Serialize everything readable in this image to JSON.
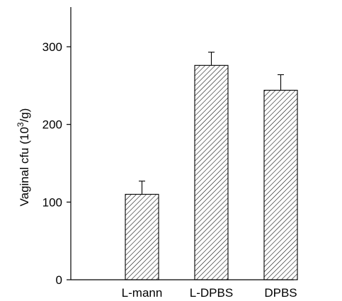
{
  "chart_data": {
    "type": "bar",
    "title": "",
    "xlabel": "",
    "ylabel": "Vaginal cfu (10",
    "ylabel_superscript": "3",
    "ylabel_suffix": "/g)",
    "ylim": [
      0,
      330
    ],
    "yticks": [
      0,
      100,
      200,
      300
    ],
    "categories": [
      "L-mann",
      "L-DPBS",
      "DPBS"
    ],
    "values": [
      110,
      276,
      244
    ],
    "errors": [
      17,
      17,
      20
    ],
    "grid": false,
    "legend": "none",
    "bar_fill": "hatched",
    "colors": {
      "bar_stroke": "#000000",
      "hatch": "#000000",
      "axis": "#000000"
    }
  }
}
